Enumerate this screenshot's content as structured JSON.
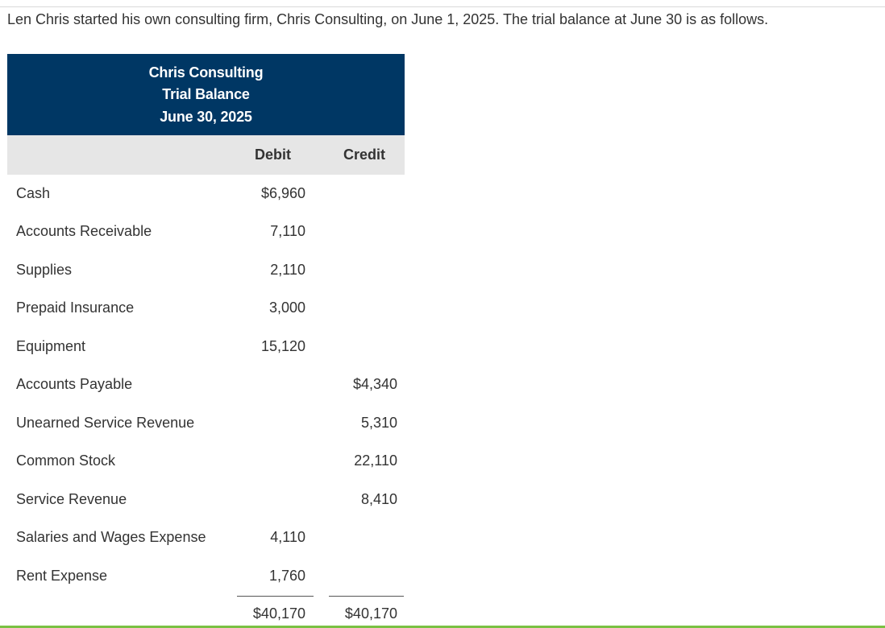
{
  "intro": "Len Chris started his own consulting firm, Chris Consulting, on June 1, 2025. The trial balance at June 30 is as follows.",
  "header": {
    "company": "Chris Consulting",
    "statement": "Trial Balance",
    "date": "June 30, 2025"
  },
  "columns": {
    "debit": "Debit",
    "credit": "Credit"
  },
  "accounts": [
    {
      "name": "Cash",
      "debit": "$6,960",
      "credit": ""
    },
    {
      "name": "Accounts Receivable",
      "debit": "7,110",
      "credit": ""
    },
    {
      "name": "Supplies",
      "debit": "2,110",
      "credit": ""
    },
    {
      "name": "Prepaid Insurance",
      "debit": "3,000",
      "credit": ""
    },
    {
      "name": "Equipment",
      "debit": "15,120",
      "credit": ""
    },
    {
      "name": "Accounts Payable",
      "debit": "",
      "credit": "$4,340"
    },
    {
      "name": "Unearned Service Revenue",
      "debit": "",
      "credit": "5,310"
    },
    {
      "name": "Common Stock",
      "debit": "",
      "credit": "22,110"
    },
    {
      "name": "Service Revenue",
      "debit": "",
      "credit": "8,410"
    },
    {
      "name": "Salaries and Wages Expense",
      "debit": "4,110",
      "credit": ""
    },
    {
      "name": "Rent Expense",
      "debit": "1,760",
      "credit": ""
    }
  ],
  "totals": {
    "debit": "$40,170",
    "credit": "$40,170"
  },
  "colors": {
    "header_bg": "#003764",
    "column_header_bg": "#e6e6e6",
    "bottom_accent": "#7ac143"
  }
}
